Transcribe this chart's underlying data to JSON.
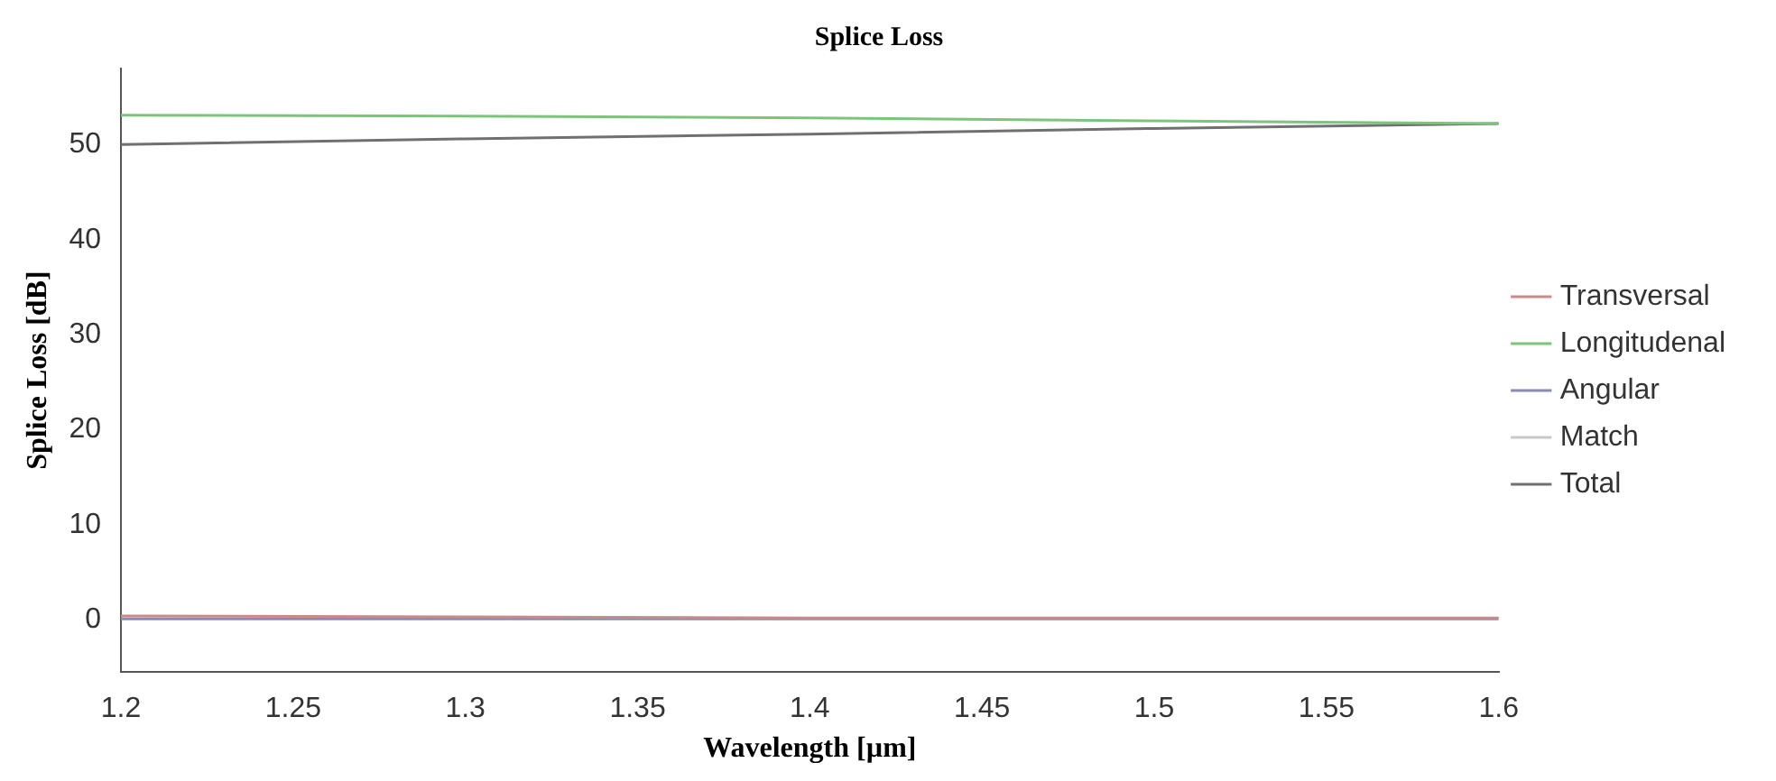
{
  "chart_data": {
    "type": "line",
    "title": "Splice Loss",
    "xlabel": "Wavelength [µm]",
    "ylabel": "Splice Loss [dB]",
    "x": [
      1.2,
      1.3,
      1.4,
      1.5,
      1.6
    ],
    "series": [
      {
        "name": "Transversal",
        "color": "#c98a8a",
        "values": [
          0.4,
          0.3,
          0.2,
          0.2,
          0.2
        ]
      },
      {
        "name": "Longitudenal",
        "color": "#7cc47c",
        "values": [
          53.1,
          53.0,
          52.8,
          52.5,
          52.2
        ]
      },
      {
        "name": "Angular",
        "color": "#8a8ab4",
        "values": [
          0.1,
          0.1,
          0.1,
          0.1,
          0.1
        ]
      },
      {
        "name": "Match",
        "color": "#c8c8c8",
        "values": [
          null,
          null,
          null,
          null,
          null
        ]
      },
      {
        "name": "Total",
        "color": "#707070",
        "values": [
          50.0,
          50.6,
          51.1,
          51.7,
          52.2
        ]
      }
    ],
    "xlim": [
      1.2,
      1.6
    ],
    "xticks": [
      1.2,
      1.25,
      1.3,
      1.35,
      1.4,
      1.45,
      1.5,
      1.55,
      1.6
    ],
    "ylim": [
      -5.5,
      58
    ],
    "yticks": [
      0,
      10,
      20,
      30,
      40,
      50
    ],
    "grid": false,
    "legend": "right",
    "marker": "none",
    "line_style": "solid"
  }
}
